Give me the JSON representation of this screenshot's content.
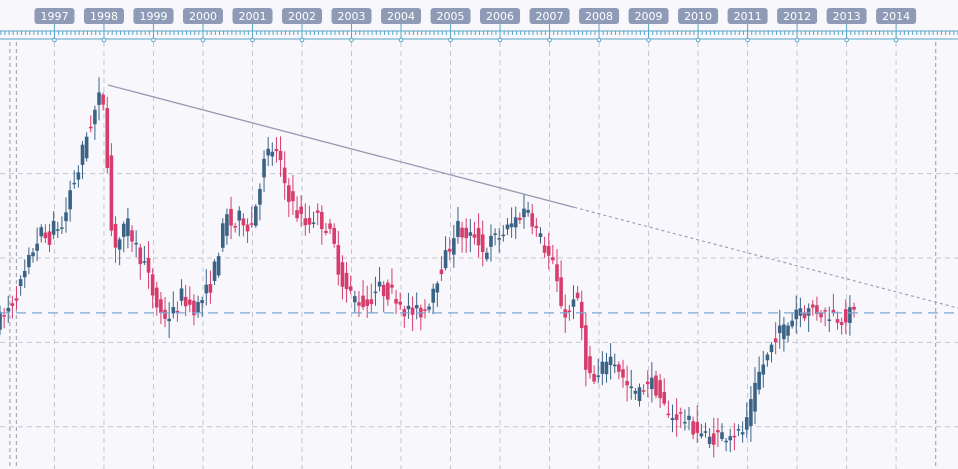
{
  "chart_data": {
    "type": "candlestick",
    "title": "",
    "xlabel": "",
    "ylabel": "",
    "x_axis": {
      "labels": [
        "1997",
        "1998",
        "1999",
        "2000",
        "2001",
        "2002",
        "2003",
        "2004",
        "2005",
        "2006",
        "2007",
        "2008",
        "2009",
        "2010",
        "2011",
        "2012",
        "2013",
        "2014"
      ],
      "range": [
        1996.4,
        2015.75
      ]
    },
    "y_axis": {
      "range": [
        0,
        100
      ],
      "tick_labels_shown": false
    },
    "grid": true,
    "colors": {
      "up": "#3b6386",
      "down": "#d63d6d",
      "grid": "#c6c6d2",
      "trendline": "#9b97b2",
      "support": "#7fa8cf",
      "ruler": "#5aa6c8",
      "tab": "#8e9ab6",
      "background": "#f7f7fc"
    },
    "annotations": {
      "trendline": {
        "x1": 1998.58,
        "y1": 91,
        "x2": 2008.0,
        "y2": 62,
        "extended_to_x": 2015.75,
        "style": "solid-then-dotted"
      },
      "support_level": {
        "y": 37,
        "style": "dashed"
      },
      "vertical_markers": [
        1996.6,
        1996.73,
        2015.3
      ]
    },
    "series": [
      {
        "name": "",
        "trend": [
          [
            1996.4,
            35
          ],
          [
            1996.55,
            36
          ],
          [
            1996.75,
            40
          ],
          [
            1996.95,
            45
          ],
          [
            1997.15,
            52
          ],
          [
            1997.3,
            56
          ],
          [
            1997.45,
            54
          ],
          [
            1997.6,
            58
          ],
          [
            1997.75,
            57
          ],
          [
            1997.9,
            66
          ],
          [
            1998.05,
            70
          ],
          [
            1998.2,
            78
          ],
          [
            1998.35,
            83
          ],
          [
            1998.55,
            90
          ],
          [
            1998.67,
            70
          ],
          [
            1998.75,
            53
          ],
          [
            1998.88,
            54
          ],
          [
            1999.05,
            58
          ],
          [
            1999.25,
            52
          ],
          [
            1999.42,
            48
          ],
          [
            1999.55,
            42
          ],
          [
            1999.7,
            37
          ],
          [
            1999.85,
            36
          ],
          [
            2000.0,
            37
          ],
          [
            2000.15,
            41
          ],
          [
            2000.3,
            39
          ],
          [
            2000.45,
            38
          ],
          [
            2000.6,
            41
          ],
          [
            2000.75,
            44
          ],
          [
            2000.9,
            52
          ],
          [
            2001.05,
            60
          ],
          [
            2001.2,
            57
          ],
          [
            2001.35,
            60
          ],
          [
            2001.55,
            57
          ],
          [
            2001.8,
            72
          ],
          [
            2001.95,
            76
          ],
          [
            2002.1,
            74
          ],
          [
            2002.25,
            67
          ],
          [
            2002.45,
            61
          ],
          [
            2002.65,
            58
          ],
          [
            2002.85,
            60
          ],
          [
            2003.1,
            57
          ],
          [
            2003.25,
            52
          ],
          [
            2003.35,
            46
          ],
          [
            2003.5,
            42
          ],
          [
            2003.7,
            40
          ],
          [
            2003.9,
            39
          ],
          [
            2004.1,
            43
          ],
          [
            2004.3,
            42
          ],
          [
            2004.5,
            41
          ],
          [
            2004.65,
            38
          ],
          [
            2004.8,
            37
          ],
          [
            2004.95,
            37
          ],
          [
            2005.1,
            38
          ],
          [
            2005.25,
            44
          ],
          [
            2005.4,
            48
          ],
          [
            2005.55,
            52
          ],
          [
            2005.7,
            58
          ],
          [
            2005.9,
            54
          ],
          [
            2006.1,
            56
          ],
          [
            2006.25,
            51
          ],
          [
            2006.4,
            54
          ],
          [
            2006.55,
            55
          ],
          [
            2006.75,
            57
          ],
          [
            2006.95,
            60
          ],
          [
            2007.15,
            62
          ],
          [
            2007.3,
            57
          ],
          [
            2007.5,
            52
          ],
          [
            2007.65,
            48
          ],
          [
            2007.8,
            40
          ],
          [
            2007.95,
            35
          ],
          [
            2008.05,
            42
          ],
          [
            2008.2,
            37
          ],
          [
            2008.3,
            26
          ],
          [
            2008.45,
            20
          ],
          [
            2008.6,
            22
          ],
          [
            2008.75,
            27
          ],
          [
            2008.95,
            25
          ],
          [
            2009.1,
            20
          ],
          [
            2009.25,
            18
          ],
          [
            2009.4,
            18
          ],
          [
            2009.55,
            21
          ],
          [
            2009.7,
            20
          ],
          [
            2009.85,
            16
          ],
          [
            2010.0,
            12
          ],
          [
            2010.15,
            13
          ],
          [
            2010.3,
            12
          ],
          [
            2010.45,
            10
          ],
          [
            2010.6,
            9
          ],
          [
            2010.8,
            7
          ],
          [
            2010.95,
            8
          ],
          [
            2011.1,
            8
          ],
          [
            2011.25,
            9
          ],
          [
            2011.4,
            8
          ],
          [
            2011.55,
            10
          ],
          [
            2011.7,
            17
          ],
          [
            2011.85,
            24
          ],
          [
            2012.0,
            27
          ],
          [
            2012.15,
            32
          ],
          [
            2012.3,
            33
          ],
          [
            2012.45,
            35
          ],
          [
            2012.6,
            39
          ],
          [
            2012.75,
            37
          ],
          [
            2012.9,
            38
          ],
          [
            2013.1,
            37
          ],
          [
            2013.25,
            37
          ],
          [
            2013.4,
            36
          ],
          [
            2013.55,
            36
          ],
          [
            2013.7,
            37
          ]
        ]
      }
    ]
  }
}
